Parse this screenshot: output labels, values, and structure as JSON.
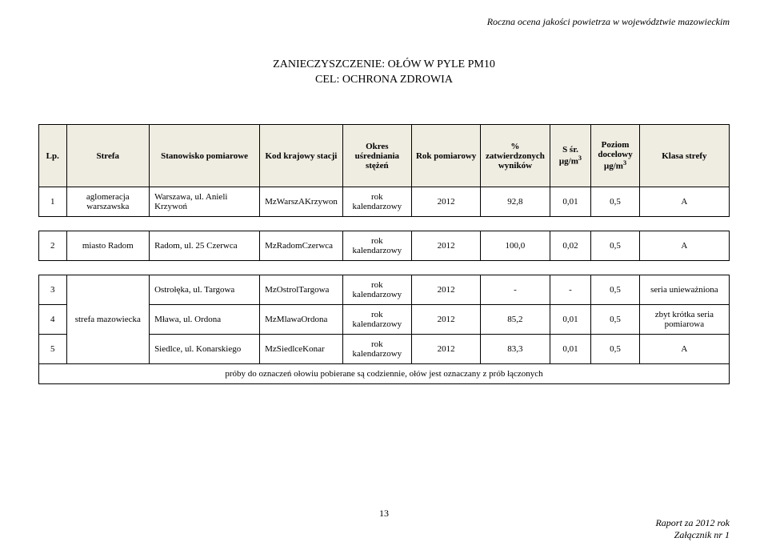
{
  "header": {
    "running": "Roczna ocena jakości powietrza w województwie mazowieckim"
  },
  "title": {
    "line1": "ZANIECZYSZCZENIE: OŁÓW W PYLE PM10",
    "line2": "CEL: OCHRONA ZDROWIA"
  },
  "columns": {
    "lp": "Lp.",
    "strefa": "Strefa",
    "stan": "Stanowisko pomiarowe",
    "kod": "Kod krajowy stacji",
    "okres": "Okres uśredniania stężeń",
    "rok": "Rok pomiarowy",
    "zatw": "% zatwierdzonych wyników",
    "ssr_label": "S śr.",
    "ssr_unit": "μg/m",
    "poziom_label": "Poziom docelowy",
    "poziom_unit": "μg/m",
    "klasa": "Klasa strefy"
  },
  "rows": [
    {
      "lp": "1",
      "strefa": "aglomeracja warszawska",
      "stan": "Warszawa, ul. Anieli Krzywoń",
      "kod": "MzWarszAKrzywon",
      "okres": "rok kalendarzowy",
      "rok": "2012",
      "zatw": "92,8",
      "ssr": "0,01",
      "poziom": "0,5",
      "klasa": "A"
    },
    {
      "lp": "2",
      "strefa": "miasto Radom",
      "stan": "Radom, ul. 25 Czerwca",
      "kod": "MzRadomCzerwca",
      "okres": "rok kalendarzowy",
      "rok": "2012",
      "zatw": "100,0",
      "ssr": "0,02",
      "poziom": "0,5",
      "klasa": "A"
    },
    {
      "lp": "3",
      "strefa": "",
      "stan": "Ostrołęka, ul. Targowa",
      "kod": "MzOstrolTargowa",
      "okres": "rok kalendarzowy",
      "rok": "2012",
      "zatw": "-",
      "ssr": "-",
      "poziom": "0,5",
      "klasa": "seria unieważniona"
    },
    {
      "lp": "4",
      "strefa": "strefa mazowiecka",
      "stan": "Mława, ul. Ordona",
      "kod": "MzMlawaOrdona",
      "okres": "rok kalendarzowy",
      "rok": "2012",
      "zatw": "85,2",
      "ssr": "0,01",
      "poziom": "0,5",
      "klasa": "zbyt krótka seria pomiarowa"
    },
    {
      "lp": "5",
      "strefa": "",
      "stan": "Siedlce, ul. Konarskiego",
      "kod": "MzSiedlceKonar",
      "okres": "rok kalendarzowy",
      "rok": "2012",
      "zatw": "83,3",
      "ssr": "0,01",
      "poziom": "0,5",
      "klasa": "A"
    }
  ],
  "footer_row": "próby do oznaczeń ołowiu pobierane są codziennie, ołów jest oznaczany z prób łączonych",
  "page_number": "13",
  "footer": {
    "line1": "Raport za 2012 rok",
    "line2": "Załącznik nr 1"
  }
}
